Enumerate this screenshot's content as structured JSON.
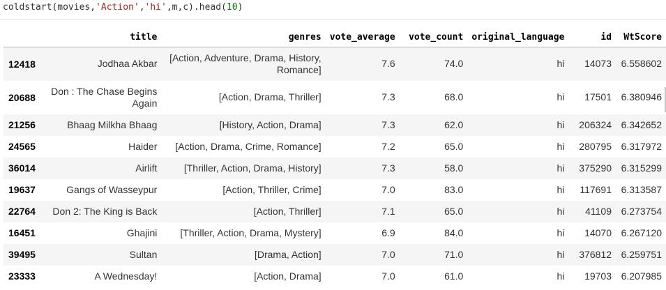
{
  "code": {
    "prefix": "coldstart(movies,",
    "arg1": "'Action'",
    "comma1": ",",
    "arg2": "'hi'",
    "middle": ",m,c).head(",
    "arg3": "10",
    "suffix": ")"
  },
  "table": {
    "columns": [
      "",
      "title",
      "genres",
      "vote_average",
      "vote_count",
      "original_language",
      "id",
      "WtScore"
    ],
    "rows": [
      {
        "index": "12418",
        "title": "Jodhaa Akbar",
        "genres": "[Action, Adventure, Drama, History, Romance]",
        "vote_average": "7.6",
        "vote_count": "74.0",
        "original_language": "hi",
        "id": "14073",
        "WtScore": "6.558602"
      },
      {
        "index": "20688",
        "title": "Don : The Chase Begins Again",
        "genres": "[Action, Drama, Thriller]",
        "vote_average": "7.3",
        "vote_count": "68.0",
        "original_language": "hi",
        "id": "17501",
        "WtScore": "6.380946"
      },
      {
        "index": "21256",
        "title": "Bhaag Milkha Bhaag",
        "genres": "[History, Action, Drama]",
        "vote_average": "7.3",
        "vote_count": "62.0",
        "original_language": "hi",
        "id": "206324",
        "WtScore": "6.342652"
      },
      {
        "index": "24565",
        "title": "Haider",
        "genres": "[Action, Drama, Crime, Romance]",
        "vote_average": "7.2",
        "vote_count": "65.0",
        "original_language": "hi",
        "id": "280795",
        "WtScore": "6.317972"
      },
      {
        "index": "36014",
        "title": "Airlift",
        "genres": "[Thriller, Action, Drama, History]",
        "vote_average": "7.3",
        "vote_count": "58.0",
        "original_language": "hi",
        "id": "375290",
        "WtScore": "6.315299"
      },
      {
        "index": "19637",
        "title": "Gangs of Wasseypur",
        "genres": "[Action, Thriller, Crime]",
        "vote_average": "7.0",
        "vote_count": "83.0",
        "original_language": "hi",
        "id": "117691",
        "WtScore": "6.313587"
      },
      {
        "index": "22764",
        "title": "Don 2: The King is Back",
        "genres": "[Action, Thriller]",
        "vote_average": "7.1",
        "vote_count": "65.0",
        "original_language": "hi",
        "id": "41109",
        "WtScore": "6.273754"
      },
      {
        "index": "16451",
        "title": "Ghajini",
        "genres": "[Thriller, Action, Drama, Mystery]",
        "vote_average": "6.9",
        "vote_count": "84.0",
        "original_language": "hi",
        "id": "14070",
        "WtScore": "6.267120"
      },
      {
        "index": "39495",
        "title": "Sultan",
        "genres": "[Drama, Action]",
        "vote_average": "7.0",
        "vote_count": "71.0",
        "original_language": "hi",
        "id": "376812",
        "WtScore": "6.259751"
      },
      {
        "index": "23333",
        "title": "A Wednesday!",
        "genres": "[Action, Drama]",
        "vote_average": "7.0",
        "vote_count": "61.0",
        "original_language": "hi",
        "id": "19703",
        "WtScore": "6.207985"
      }
    ]
  },
  "colors": {
    "string": "#ba2121",
    "number": "#008000",
    "text": "#333333",
    "row_stripe": "#f5f5f5"
  }
}
